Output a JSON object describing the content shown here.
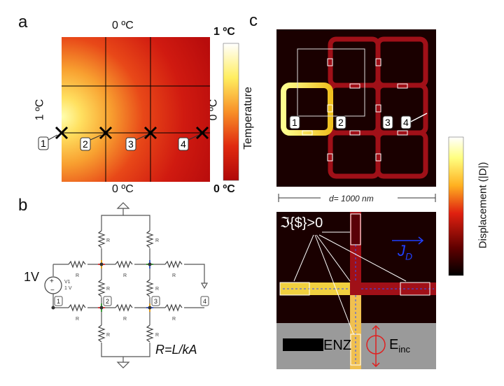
{
  "panel_a": {
    "letter": "a",
    "top_label": "0 ºC",
    "bottom_label": "0 ºC",
    "left_label": "1 ºC",
    "right_label": "0 ºC",
    "colorbar_max": "1 ºC",
    "colorbar_min": "0 ºC",
    "colorbar_title": "Temperature",
    "marker": "X",
    "nodes": [
      "1",
      "2",
      "3",
      "4"
    ]
  },
  "panel_b": {
    "letter": "b",
    "source_label": "1V",
    "source_text": [
      "V1",
      "1 V"
    ],
    "resistor_label": "R",
    "nodes": [
      "1",
      "2",
      "3",
      "4"
    ],
    "formula": "R=L/kA"
  },
  "panel_c": {
    "letter": "c",
    "nodes": [
      "1",
      "2",
      "3",
      "4"
    ],
    "dimension_label": "d= 1000 nm",
    "condition_label": "ℑ{$}>0",
    "current_label": "J",
    "current_sub": "D",
    "enz_label": "ENZ",
    "einc_label": "E",
    "einc_sub": "inc",
    "colorbar_title": "Displacement (|D|)"
  }
}
